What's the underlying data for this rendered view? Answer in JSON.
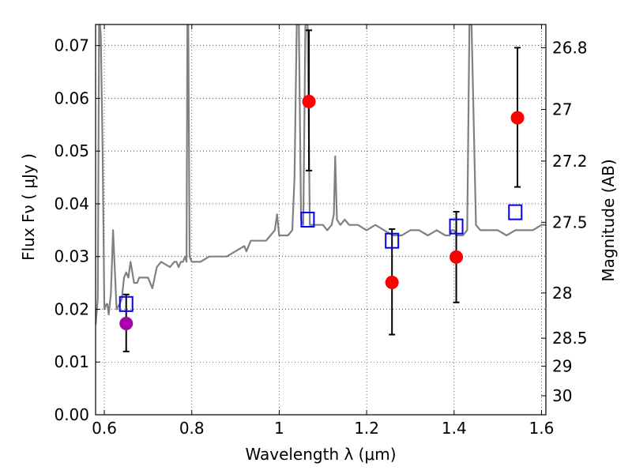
{
  "chart_data": {
    "type": "scatter",
    "xlabel": "Wavelength  λ (μm)",
    "ylabel": "Flux  Fν  ( μJy )",
    "ylabel_right": "Magnitude (AB)",
    "xlim": [
      0.58,
      1.61
    ],
    "ylim": [
      0.0,
      0.074
    ],
    "grid": true,
    "x_ticks": [
      0.6,
      0.8,
      1.0,
      1.2,
      1.4,
      1.6
    ],
    "x_tick_labels": [
      "0.6",
      "0.8",
      "1",
      "1.2",
      "1.4",
      "1.6"
    ],
    "y_ticks": [
      0.0,
      0.01,
      0.02,
      0.03,
      0.04,
      0.05,
      0.06,
      0.07
    ],
    "y_tick_labels": [
      "0.00",
      "0.01",
      "0.02",
      "0.03",
      "0.04",
      "0.05",
      "0.06",
      "0.07"
    ],
    "right_ticks": [
      {
        "label": "26.8",
        "flux": 0.0696
      },
      {
        "label": "27",
        "flux": 0.0579
      },
      {
        "label": "27.2",
        "flux": 0.0481
      },
      {
        "label": "27.5",
        "flux": 0.0365
      },
      {
        "label": "28",
        "flux": 0.0231
      },
      {
        "label": "28.5",
        "flux": 0.0145
      },
      {
        "label": "29",
        "flux": 0.0092
      },
      {
        "label": "30",
        "flux": 0.0036
      }
    ],
    "series": [
      {
        "kind": "line",
        "color": "#808080",
        "x": [
          0.58,
          0.585,
          0.588,
          0.59,
          0.592,
          0.596,
          0.6,
          0.605,
          0.607,
          0.61,
          0.615,
          0.62,
          0.628,
          0.635,
          0.64,
          0.645,
          0.65,
          0.655,
          0.66,
          0.668,
          0.675,
          0.68,
          0.69,
          0.7,
          0.71,
          0.72,
          0.73,
          0.75,
          0.76,
          0.765,
          0.77,
          0.775,
          0.78,
          0.785,
          0.788,
          0.79,
          0.792,
          0.795,
          0.8,
          0.82,
          0.84,
          0.86,
          0.88,
          0.9,
          0.92,
          0.925,
          0.93,
          0.935,
          0.95,
          0.97,
          0.98,
          0.99,
          0.995,
          1.0,
          1.01,
          1.02,
          1.03,
          1.035,
          1.04,
          1.045,
          1.05,
          1.055,
          1.06,
          1.065,
          1.07,
          1.08,
          1.09,
          1.1,
          1.11,
          1.12,
          1.125,
          1.128,
          1.132,
          1.14,
          1.15,
          1.16,
          1.18,
          1.2,
          1.22,
          1.24,
          1.26,
          1.28,
          1.3,
          1.32,
          1.34,
          1.36,
          1.38,
          1.39,
          1.395,
          1.4,
          1.405,
          1.41,
          1.42,
          1.43,
          1.435,
          1.44,
          1.45,
          1.46,
          1.48,
          1.5,
          1.52,
          1.54,
          1.56,
          1.58,
          1.6,
          1.61
        ],
        "y": [
          0.017,
          0.022,
          0.074,
          0.074,
          0.072,
          0.05,
          0.02,
          0.021,
          0.021,
          0.019,
          0.023,
          0.035,
          0.02,
          0.021,
          0.022,
          0.026,
          0.027,
          0.026,
          0.029,
          0.025,
          0.025,
          0.026,
          0.026,
          0.026,
          0.024,
          0.028,
          0.029,
          0.028,
          0.029,
          0.029,
          0.028,
          0.029,
          0.029,
          0.03,
          0.029,
          0.074,
          0.074,
          0.03,
          0.029,
          0.029,
          0.03,
          0.03,
          0.03,
          0.031,
          0.032,
          0.031,
          0.032,
          0.033,
          0.033,
          0.033,
          0.034,
          0.035,
          0.038,
          0.034,
          0.034,
          0.034,
          0.035,
          0.045,
          0.074,
          0.074,
          0.037,
          0.036,
          0.074,
          0.074,
          0.036,
          0.036,
          0.036,
          0.036,
          0.035,
          0.036,
          0.038,
          0.049,
          0.037,
          0.036,
          0.037,
          0.036,
          0.036,
          0.035,
          0.036,
          0.035,
          0.034,
          0.034,
          0.035,
          0.035,
          0.034,
          0.035,
          0.034,
          0.034,
          0.035,
          0.035,
          0.034,
          0.034,
          0.034,
          0.035,
          0.074,
          0.074,
          0.036,
          0.035,
          0.035,
          0.035,
          0.034,
          0.035,
          0.035,
          0.035,
          0.036,
          0.036
        ]
      },
      {
        "kind": "errorbar-points",
        "color": "#ff0000",
        "marker": "circle",
        "x": [
          1.068,
          1.258,
          1.405,
          1.545
        ],
        "y": [
          0.0594,
          0.0251,
          0.0299,
          0.0563
        ],
        "yerr_low": [
          0.0463,
          0.0152,
          0.0213,
          0.0432
        ],
        "yerr_high": [
          0.0729,
          0.0352,
          0.0385,
          0.0696
        ]
      },
      {
        "kind": "errorbar-points",
        "color": "#aa00aa",
        "marker": "circle",
        "x": [
          0.65
        ],
        "y": [
          0.0173
        ],
        "yerr_low": [
          0.012
        ],
        "yerr_high": [
          0.0228
        ]
      },
      {
        "kind": "points",
        "color": "#0000ff",
        "marker": "open-square",
        "x": [
          0.65,
          1.065,
          1.258,
          1.405,
          1.54
        ],
        "y": [
          0.021,
          0.037,
          0.033,
          0.0357,
          0.0384
        ]
      }
    ]
  }
}
